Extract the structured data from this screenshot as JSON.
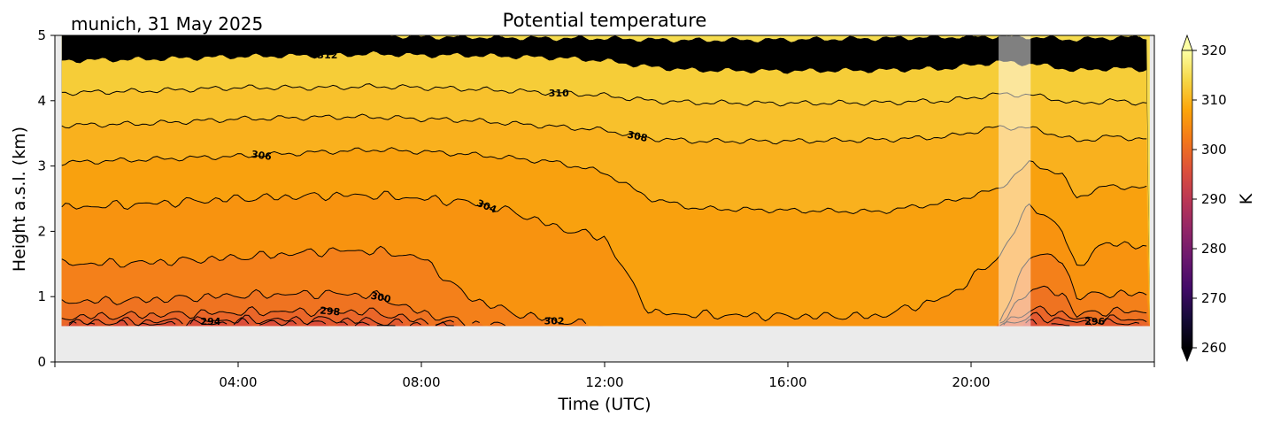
{
  "chart_data": {
    "type": "heatmap",
    "title": "Potential temperature",
    "subtitle": "munich, 31 May 2025",
    "xlabel": "Time (UTC)",
    "ylabel": "Height a.s.l. (km)",
    "xlim_hours": [
      0,
      24
    ],
    "ylim": [
      0,
      5
    ],
    "x_tick_labels": [
      "04:00",
      "08:00",
      "12:00",
      "16:00",
      "20:00"
    ],
    "x_tick_hours": [
      4,
      8,
      12,
      16,
      20
    ],
    "y_ticks": [
      0,
      1,
      2,
      3,
      4,
      5
    ],
    "colorbar": {
      "label": "K",
      "range": [
        260,
        320
      ],
      "ticks": [
        260,
        270,
        280,
        290,
        300,
        310,
        320
      ],
      "colormap": "inferno",
      "extend": "both"
    },
    "data_bottom_km": 0.55,
    "missing_interval_hours": [
      20.6,
      21.3
    ],
    "times_hours": [
      0.15,
      2,
      4,
      6,
      7,
      8,
      9,
      10,
      11,
      12,
      13,
      14,
      16,
      18,
      19.5,
      20.6,
      21.3,
      22,
      22.3,
      23,
      23.9
    ],
    "contours": [
      {
        "level": 314,
        "heights_km": [
          5,
          5,
          5,
          5,
          5,
          4.97,
          4.97,
          4.96,
          4.95,
          4.95,
          4.93,
          4.92,
          4.93,
          4.95,
          4.97,
          4.98,
          4.97,
          4.94,
          4.93,
          4.96,
          4.97
        ]
      },
      {
        "level": 312,
        "heights_km": [
          4.62,
          4.64,
          4.68,
          4.7,
          4.72,
          4.7,
          4.7,
          4.68,
          4.66,
          4.62,
          4.52,
          4.47,
          4.46,
          4.47,
          4.5,
          4.6,
          4.57,
          4.5,
          4.46,
          4.5,
          4.48
        ]
      },
      {
        "level": 310,
        "heights_km": [
          4.12,
          4.15,
          4.2,
          4.2,
          4.22,
          4.2,
          4.18,
          4.15,
          4.12,
          4.08,
          4.0,
          3.97,
          3.96,
          3.97,
          4.0,
          4.1,
          4.09,
          4.0,
          3.95,
          4.0,
          3.96
        ]
      },
      {
        "level": 308,
        "heights_km": [
          3.62,
          3.65,
          3.72,
          3.75,
          3.75,
          3.72,
          3.7,
          3.65,
          3.6,
          3.55,
          3.42,
          3.38,
          3.38,
          3.4,
          3.45,
          3.6,
          3.58,
          3.45,
          3.38,
          3.45,
          3.41
        ]
      },
      {
        "level": 306,
        "heights_km": [
          3.05,
          3.1,
          3.15,
          3.22,
          3.25,
          3.22,
          3.18,
          3.12,
          3.05,
          2.9,
          2.5,
          2.35,
          2.32,
          2.3,
          2.45,
          2.65,
          3.06,
          2.85,
          2.52,
          2.7,
          2.65
        ]
      },
      {
        "level": 304,
        "heights_km": [
          2.36,
          2.42,
          2.5,
          2.55,
          2.55,
          2.5,
          2.45,
          2.3,
          2.05,
          1.9,
          0.75,
          0.72,
          0.7,
          0.7,
          1.0,
          1.6,
          2.43,
          2.0,
          1.45,
          1.85,
          1.72
        ]
      },
      {
        "level": 302,
        "heights_km": [
          1.5,
          1.52,
          1.6,
          1.7,
          1.7,
          1.6,
          1.0,
          0.75,
          0.62,
          0.55,
          0.55,
          0.55,
          0.55,
          0.55,
          0.55,
          0.55,
          1.68,
          1.55,
          1.0,
          1.05,
          1.03
        ]
      },
      {
        "level": 300,
        "heights_km": [
          0.92,
          0.95,
          1.02,
          1.05,
          1.02,
          0.75,
          0.6,
          0.55,
          0.55,
          0.55,
          0.55,
          0.55,
          0.55,
          0.55,
          0.55,
          0.55,
          1.14,
          1.05,
          0.72,
          0.78,
          0.76
        ]
      },
      {
        "level": 298,
        "heights_km": [
          0.68,
          0.72,
          0.76,
          0.78,
          0.76,
          0.62,
          0.55,
          0.55,
          0.55,
          0.55,
          0.55,
          0.55,
          0.55,
          0.55,
          0.55,
          0.55,
          0.8,
          0.75,
          0.65,
          0.66,
          0.64
        ]
      },
      {
        "level": 296,
        "heights_km": [
          0.6,
          0.62,
          0.64,
          0.65,
          0.62,
          0.57,
          0.55,
          0.55,
          0.55,
          0.55,
          0.55,
          0.55,
          0.55,
          0.55,
          0.55,
          0.55,
          0.69,
          0.65,
          0.6,
          0.6,
          0.58
        ]
      },
      {
        "level": 294,
        "heights_km": [
          0.56,
          0.57,
          0.6,
          0.58,
          0.56,
          0.55,
          0.55,
          0.55,
          0.55,
          0.55,
          0.55,
          0.55,
          0.55,
          0.55,
          0.55,
          0.55,
          0.58,
          0.56,
          0.55,
          0.55,
          0.55
        ]
      }
    ],
    "labeled_levels": [
      "312",
      "310",
      "308",
      "306",
      "304",
      "302",
      "300",
      "298",
      "296",
      "294"
    ],
    "band_colors": {
      "above_314": "#f5db4e",
      "312": "#f6cd38",
      "310": "#f8c12c",
      "308": "#f9b11e",
      "306": "#f9a10e",
      "304": "#f8930f",
      "302": "#f4801a",
      "300": "#ef7321",
      "298": "#ea6629",
      "296": "#e35a30",
      "294": "#dc4e3a",
      "below_294": "#d8463c"
    },
    "nodata_color": "#ebebeb"
  }
}
